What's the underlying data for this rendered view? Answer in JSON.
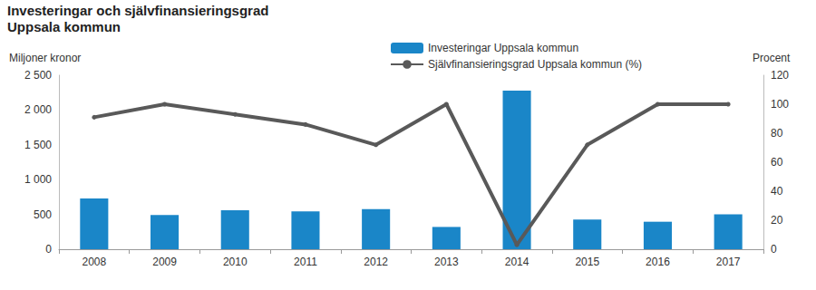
{
  "chart_data": {
    "type": "bar",
    "title": "Investeringar och självfinansieringsgrad",
    "subtitle": "Uppsala kommun",
    "ylabel": "Miljoner kronor",
    "y2label": "Procent",
    "categories": [
      "2008",
      "2009",
      "2010",
      "2011",
      "2012",
      "2013",
      "2014",
      "2015",
      "2016",
      "2017"
    ],
    "series": [
      {
        "name": "Investeringar Uppsala kommun",
        "type": "bar",
        "color": "#1a86c8",
        "values": [
          730,
          490,
          560,
          545,
          575,
          320,
          2280,
          425,
          395,
          500
        ]
      },
      {
        "name": "Självfinansieringsgrad Uppsala kommun (%)",
        "type": "line",
        "axis": "y2",
        "color": "#595959",
        "marker": "circle",
        "line_style": "solid",
        "values": [
          91,
          100,
          93,
          86,
          72,
          100,
          3,
          72,
          100,
          100
        ]
      }
    ],
    "ylim": [
      0,
      2500
    ],
    "yticks": [
      0,
      500,
      {
        "value": 1000,
        "label": "1 000"
      },
      {
        "value": 1500,
        "label": "1 500"
      },
      {
        "value": 2000,
        "label": "2 000"
      },
      {
        "value": 2500,
        "label": "2 500"
      }
    ],
    "y2lim": [
      0,
      120
    ],
    "y2ticks": [
      0,
      20,
      40,
      60,
      80,
      100,
      120
    ],
    "grid": false,
    "legend": "top",
    "data_labels": false
  }
}
